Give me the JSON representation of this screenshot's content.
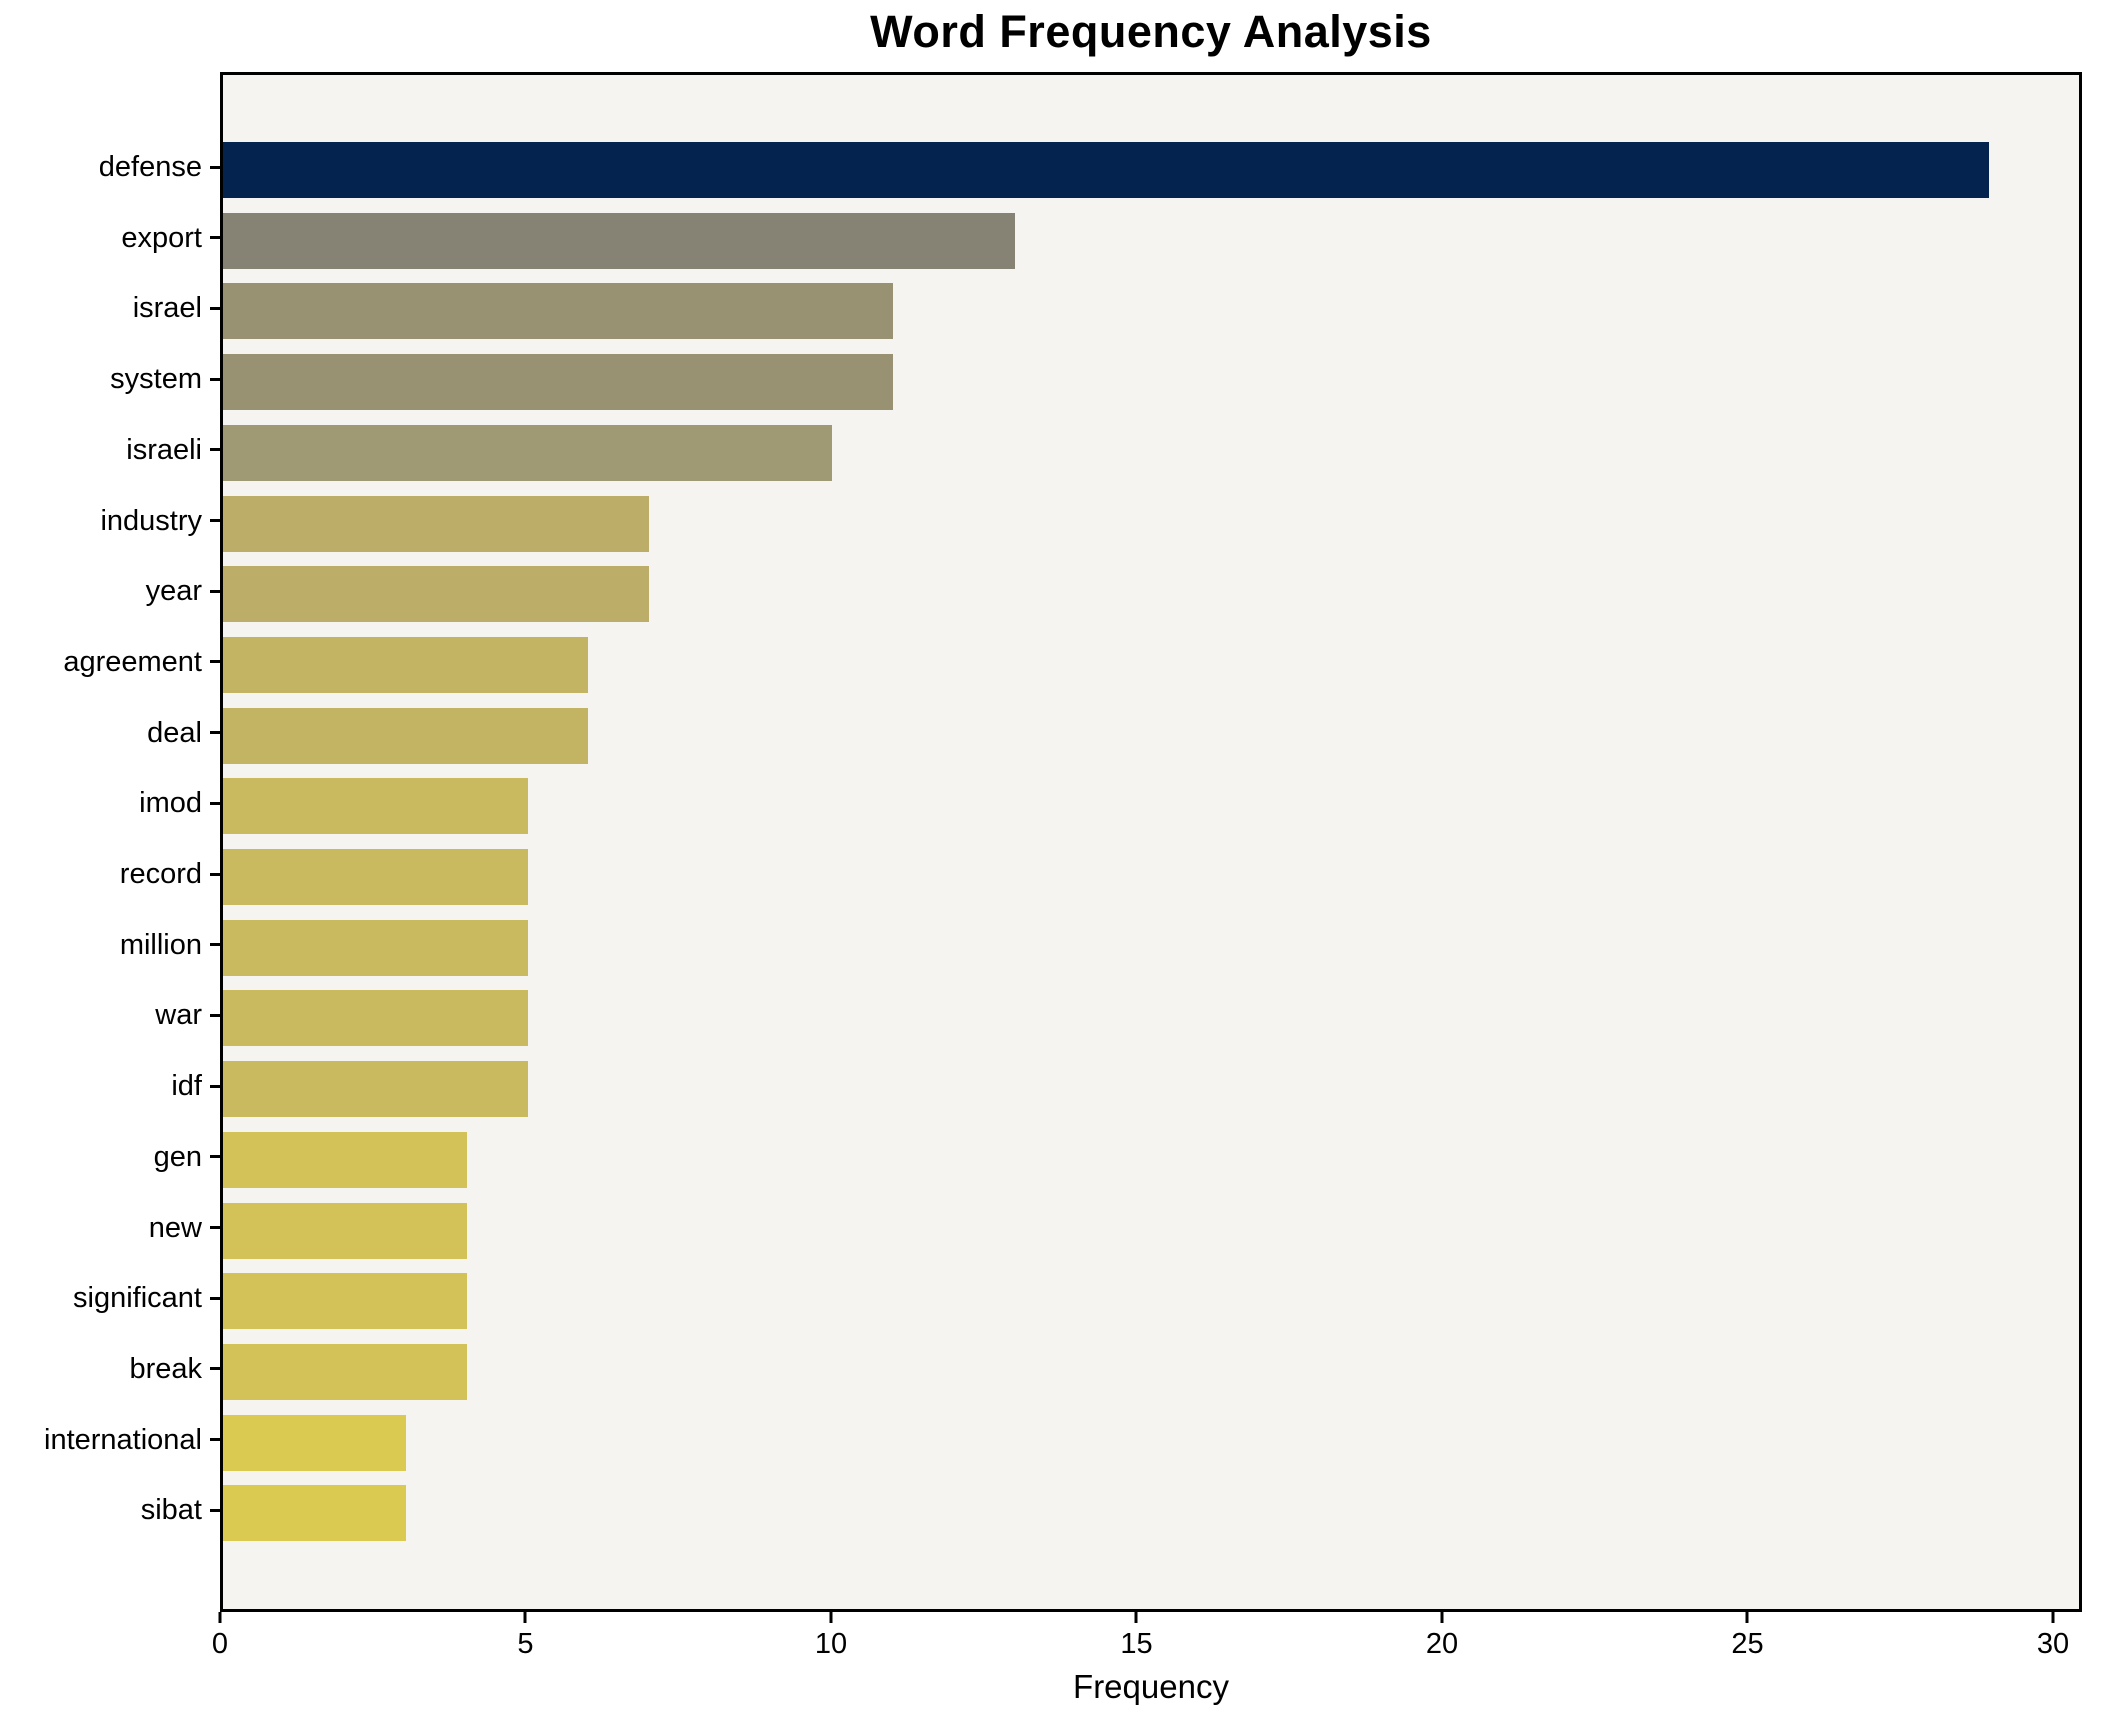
{
  "chart_data": {
    "type": "bar",
    "orientation": "horizontal",
    "title": "Word Frequency Analysis",
    "xlabel": "Frequency",
    "ylabel": "",
    "legend_position": "none",
    "grid": false,
    "plot_background": "#f5f4f1",
    "figure_background": "#ffffff",
    "spine_color": "#000000",
    "xlim": [
      0,
      30.475
    ],
    "xticks": [
      0,
      5,
      10,
      15,
      20,
      25,
      30
    ],
    "categories": [
      "defense",
      "export",
      "israel",
      "system",
      "israeli",
      "industry",
      "year",
      "agreement",
      "deal",
      "imod",
      "record",
      "million",
      "war",
      "idf",
      "gen",
      "new",
      "significant",
      "break",
      "international",
      "sibat"
    ],
    "values": [
      29,
      13,
      11,
      11,
      10,
      7,
      7,
      6,
      6,
      5,
      5,
      5,
      5,
      5,
      4,
      4,
      4,
      4,
      3,
      3
    ],
    "bar_colors": [
      "#04234e",
      "#868274",
      "#999272",
      "#999272",
      "#a09a74",
      "#bcae68",
      "#bcae68",
      "#c3b464",
      "#c3b464",
      "#c9ba5f",
      "#c9ba5f",
      "#c9ba5f",
      "#c9ba5f",
      "#c9ba5f",
      "#d2c258",
      "#d2c258",
      "#d2c258",
      "#d2c258",
      "#dbca52",
      "#dbca52"
    ]
  }
}
